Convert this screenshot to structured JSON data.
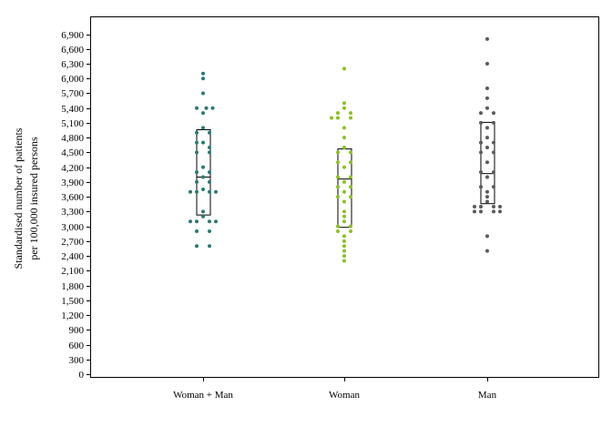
{
  "chart_data": {
    "type": "scatter",
    "subtype": "strip-plot-with-boxes",
    "ylabel_lines": [
      "Standardised number of patients",
      "per 100,000 insured persons"
    ],
    "xlabel": "",
    "ylim": [
      0,
      7150
    ],
    "y_ticks": [
      0,
      300,
      600,
      900,
      1200,
      1500,
      1800,
      2100,
      2400,
      2700,
      3000,
      3300,
      3600,
      3900,
      4200,
      4500,
      4800,
      5100,
      5400,
      5700,
      6000,
      6300,
      6600,
      6900
    ],
    "y_tick_labels": [
      "0",
      "300",
      "600",
      "900",
      "1,200",
      "1,500",
      "1,800",
      "2,100",
      "2,400",
      "2,700",
      "3,000",
      "3,300",
      "3,600",
      "3,900",
      "4,200",
      "4,500",
      "4,800",
      "5,100",
      "5,400",
      "5,700",
      "6,000",
      "6,300",
      "6,600",
      "6,900"
    ],
    "grid": false,
    "legend": "none",
    "categories": [
      "Woman + Man",
      "Woman",
      "Man"
    ],
    "series": [
      {
        "category": "Woman + Man",
        "color": "#2a7a72",
        "box": {
          "q1": 3230,
          "median": 4000,
          "q3": 4960
        },
        "points": [
          {
            "y": 6100,
            "o": 0
          },
          {
            "y": 6000,
            "o": 0
          },
          {
            "y": 5700,
            "o": 0
          },
          {
            "y": 5400,
            "o": -1
          },
          {
            "y": 5400,
            "o": 0.5
          },
          {
            "y": 5400,
            "o": 1.5
          },
          {
            "y": 5300,
            "o": 0
          },
          {
            "y": 5000,
            "o": 0
          },
          {
            "y": 4900,
            "o": -1
          },
          {
            "y": 4900,
            "o": 1
          },
          {
            "y": 4700,
            "o": -1
          },
          {
            "y": 4700,
            "o": 0
          },
          {
            "y": 4600,
            "o": 1
          },
          {
            "y": 4500,
            "o": -1
          },
          {
            "y": 4500,
            "o": 1
          },
          {
            "y": 4200,
            "o": 0
          },
          {
            "y": 4100,
            "o": -1
          },
          {
            "y": 4100,
            "o": 1
          },
          {
            "y": 4000,
            "o": 0
          },
          {
            "y": 3900,
            "o": -1
          },
          {
            "y": 3900,
            "o": 1
          },
          {
            "y": 3750,
            "o": 0
          },
          {
            "y": 3700,
            "o": -2
          },
          {
            "y": 3700,
            "o": -1
          },
          {
            "y": 3700,
            "o": 1
          },
          {
            "y": 3700,
            "o": 2
          },
          {
            "y": 3300,
            "o": 0
          },
          {
            "y": 3200,
            "o": 0
          },
          {
            "y": 3100,
            "o": -2
          },
          {
            "y": 3100,
            "o": -1
          },
          {
            "y": 3100,
            "o": 1
          },
          {
            "y": 3100,
            "o": 2
          },
          {
            "y": 2900,
            "o": -1
          },
          {
            "y": 2900,
            "o": 1
          },
          {
            "y": 2600,
            "o": -1
          },
          {
            "y": 2600,
            "o": 1
          }
        ]
      },
      {
        "category": "Woman",
        "color": "#8cc21f",
        "box": {
          "q1": 2980,
          "median": 3960,
          "q3": 4570
        },
        "points": [
          {
            "y": 6200,
            "o": 0
          },
          {
            "y": 5500,
            "o": 0
          },
          {
            "y": 5400,
            "o": 0
          },
          {
            "y": 5300,
            "o": -1
          },
          {
            "y": 5300,
            "o": 1
          },
          {
            "y": 5200,
            "o": -2
          },
          {
            "y": 5200,
            "o": -1
          },
          {
            "y": 5200,
            "o": 1
          },
          {
            "y": 5000,
            "o": 0
          },
          {
            "y": 4800,
            "o": 0
          },
          {
            "y": 4600,
            "o": 0
          },
          {
            "y": 4500,
            "o": -1
          },
          {
            "y": 4500,
            "o": 1
          },
          {
            "y": 4300,
            "o": -1
          },
          {
            "y": 4300,
            "o": 1
          },
          {
            "y": 4200,
            "o": 0
          },
          {
            "y": 4000,
            "o": -1
          },
          {
            "y": 4000,
            "o": 1
          },
          {
            "y": 3900,
            "o": 0
          },
          {
            "y": 3800,
            "o": -1
          },
          {
            "y": 3800,
            "o": 1
          },
          {
            "y": 3700,
            "o": 0
          },
          {
            "y": 3600,
            "o": -1
          },
          {
            "y": 3600,
            "o": 1
          },
          {
            "y": 3500,
            "o": 0
          },
          {
            "y": 3300,
            "o": 0
          },
          {
            "y": 3200,
            "o": 0
          },
          {
            "y": 3100,
            "o": 0
          },
          {
            "y": 3000,
            "o": -1
          },
          {
            "y": 3000,
            "o": 1
          },
          {
            "y": 2900,
            "o": -1
          },
          {
            "y": 2900,
            "o": 1
          },
          {
            "y": 2800,
            "o": 0
          },
          {
            "y": 2700,
            "o": 0
          },
          {
            "y": 2600,
            "o": 0
          },
          {
            "y": 2500,
            "o": 0
          },
          {
            "y": 2400,
            "o": 0
          },
          {
            "y": 2300,
            "o": 0
          }
        ]
      },
      {
        "category": "Man",
        "color": "#5a5a5a",
        "box": {
          "q1": 3460,
          "median": 4070,
          "q3": 5110
        },
        "points": [
          {
            "y": 6800,
            "o": 0
          },
          {
            "y": 6300,
            "o": 0
          },
          {
            "y": 5800,
            "o": 0
          },
          {
            "y": 5600,
            "o": 0
          },
          {
            "y": 5400,
            "o": 0
          },
          {
            "y": 5300,
            "o": -1
          },
          {
            "y": 5300,
            "o": 1
          },
          {
            "y": 5100,
            "o": -1
          },
          {
            "y": 5100,
            "o": 1
          },
          {
            "y": 5000,
            "o": 0
          },
          {
            "y": 4800,
            "o": 0
          },
          {
            "y": 4700,
            "o": -1
          },
          {
            "y": 4700,
            "o": 1
          },
          {
            "y": 4600,
            "o": 0
          },
          {
            "y": 4500,
            "o": -1
          },
          {
            "y": 4500,
            "o": 1
          },
          {
            "y": 4300,
            "o": 0
          },
          {
            "y": 4100,
            "o": -1
          },
          {
            "y": 4100,
            "o": 1
          },
          {
            "y": 4000,
            "o": 0
          },
          {
            "y": 3800,
            "o": -1
          },
          {
            "y": 3800,
            "o": 1
          },
          {
            "y": 3700,
            "o": 0
          },
          {
            "y": 3600,
            "o": 0
          },
          {
            "y": 3500,
            "o": 0
          },
          {
            "y": 3400,
            "o": -2
          },
          {
            "y": 3400,
            "o": -1
          },
          {
            "y": 3400,
            "o": 1
          },
          {
            "y": 3400,
            "o": 2
          },
          {
            "y": 3300,
            "o": -2
          },
          {
            "y": 3300,
            "o": -1
          },
          {
            "y": 3300,
            "o": 1
          },
          {
            "y": 3300,
            "o": 2
          },
          {
            "y": 2800,
            "o": 0
          },
          {
            "y": 2500,
            "o": 0
          }
        ]
      }
    ]
  }
}
